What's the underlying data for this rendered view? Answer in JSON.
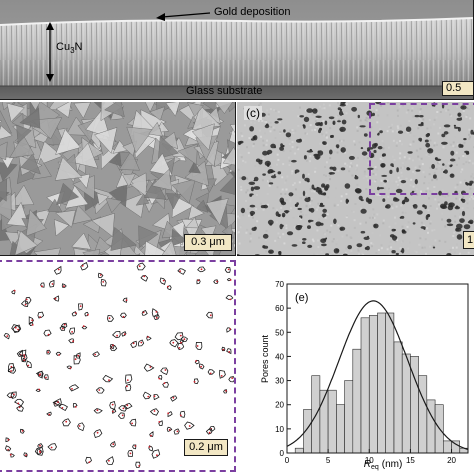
{
  "panel_a": {
    "annotation": "Gold deposition",
    "layer_label_main": "Cu",
    "layer_label_sub": "3",
    "layer_label_tail": "N",
    "substrate_label": "Glass substrate",
    "scale_label": "0.5"
  },
  "panel_b": {
    "scale_label": "0.3 μm"
  },
  "panel_c": {
    "letter": "(c)",
    "scale_label": "1"
  },
  "panel_d": {
    "scale_label": "0.2 μm"
  },
  "panel_e": {
    "letter": "(e)",
    "xlabel_main": "R",
    "xlabel_sub": "eq",
    "xlabel_unit": "(nm)",
    "ylabel": "Pores count"
  },
  "colors": {
    "frame": "#1a1a1a",
    "dash": "#7b3fa0",
    "bar_fill": "#d0d0d0",
    "contour": "#1a1a1a",
    "marker": "#d0202a"
  },
  "chart_data": {
    "type": "bar",
    "title": "",
    "xlabel": "R_eq (nm)",
    "ylabel": "Pores count",
    "xlim": [
      0,
      22
    ],
    "ylim": [
      0,
      70
    ],
    "xticks": [
      0,
      5,
      10,
      15,
      20
    ],
    "yticks": [
      0,
      10,
      20,
      30,
      40,
      50,
      60,
      70
    ],
    "bin_width": 1,
    "bin_starts": [
      0,
      1,
      2,
      3,
      4,
      5,
      6,
      7,
      8,
      9,
      10,
      11,
      12,
      13,
      14,
      15,
      16,
      17,
      18,
      19,
      20,
      21
    ],
    "values": [
      0,
      2,
      18,
      32,
      26,
      26,
      20,
      30,
      43,
      56,
      57,
      58,
      58,
      46,
      41,
      40,
      32,
      22,
      20,
      5,
      5,
      2
    ],
    "fit_curve": {
      "type": "gaussian",
      "peak": 63,
      "center": 10.5,
      "sigma": 4.2
    }
  }
}
